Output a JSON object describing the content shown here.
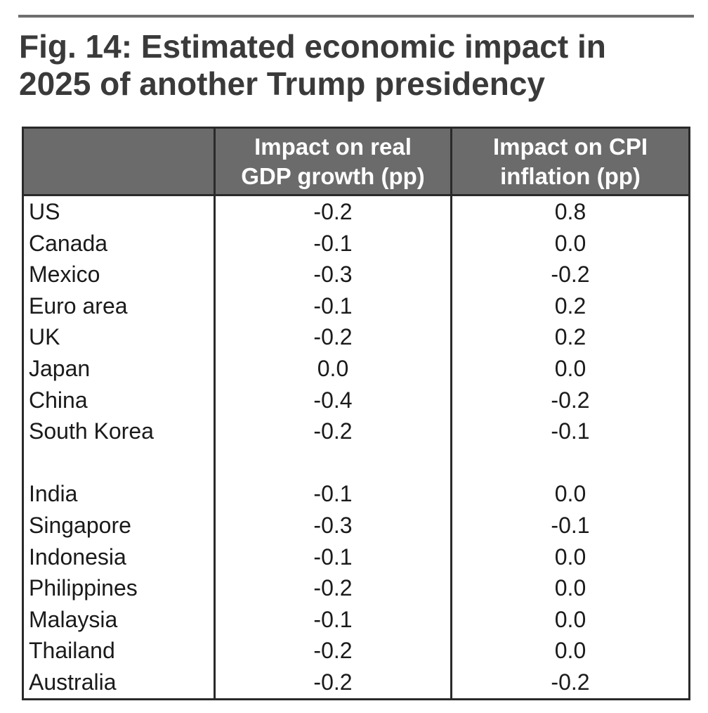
{
  "title": {
    "line1": "Fig. 14: Estimated economic impact in",
    "line2": "2025 of another Trump presidency"
  },
  "chart_data": {
    "type": "table",
    "title": "Fig. 14: Estimated economic impact in 2025 of another Trump presidency",
    "columns": [
      {
        "line1": "",
        "line2": ""
      },
      {
        "line1": "Impact on real",
        "line2": "GDP growth (pp)"
      },
      {
        "line1": "Impact on CPI",
        "line2": "inflation (pp)"
      }
    ],
    "groups": [
      [
        {
          "country": "US",
          "gdp": "-0.2",
          "cpi": "0.8"
        },
        {
          "country": "Canada",
          "gdp": "-0.1",
          "cpi": "0.0"
        },
        {
          "country": "Mexico",
          "gdp": "-0.3",
          "cpi": "-0.2"
        },
        {
          "country": "Euro area",
          "gdp": "-0.1",
          "cpi": "0.2"
        },
        {
          "country": "UK",
          "gdp": "-0.2",
          "cpi": "0.2"
        },
        {
          "country": "Japan",
          "gdp": "0.0",
          "cpi": "0.0"
        },
        {
          "country": "China",
          "gdp": "-0.4",
          "cpi": "-0.2"
        },
        {
          "country": "South Korea",
          "gdp": "-0.2",
          "cpi": "-0.1"
        }
      ],
      [
        {
          "country": "India",
          "gdp": "-0.1",
          "cpi": "0.0"
        },
        {
          "country": "Singapore",
          "gdp": "-0.3",
          "cpi": "-0.1"
        },
        {
          "country": "Indonesia",
          "gdp": "-0.1",
          "cpi": "0.0"
        },
        {
          "country": "Philippines",
          "gdp": "-0.2",
          "cpi": "0.0"
        },
        {
          "country": "Malaysia",
          "gdp": "-0.1",
          "cpi": "0.0"
        },
        {
          "country": "Thailand",
          "gdp": "-0.2",
          "cpi": "0.0"
        },
        {
          "country": "Australia",
          "gdp": "-0.2",
          "cpi": "-0.2"
        }
      ]
    ]
  }
}
